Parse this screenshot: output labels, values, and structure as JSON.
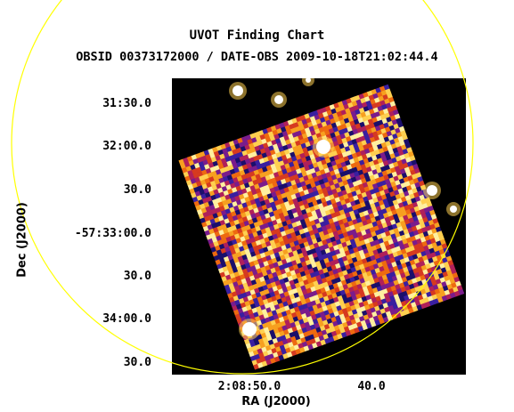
{
  "header": {
    "title": "UVOT Finding Chart",
    "subtitle": "OBSID 00373172000 / DATE-OBS 2009-10-18T21:02:44.4"
  },
  "axes": {
    "x_title": "RA (J2000)",
    "y_title": "Dec (J2000)",
    "dec_ticks": [
      "31:30.0",
      "32:00.0",
      "30.0",
      "-57:33:00.0",
      "30.0",
      "34:00.0",
      "30.0"
    ],
    "ra_ticks": [
      "2:08:50.0",
      "40.0"
    ]
  },
  "colors": {
    "background": "#000000",
    "circle": "#ffff00",
    "palette": [
      "#1a0f6b",
      "#3a1fa0",
      "#7a1c8c",
      "#b0205a",
      "#d63a20",
      "#ee6a10",
      "#f7a020",
      "#ffd050",
      "#fff0a0",
      "#ffffff"
    ]
  }
}
